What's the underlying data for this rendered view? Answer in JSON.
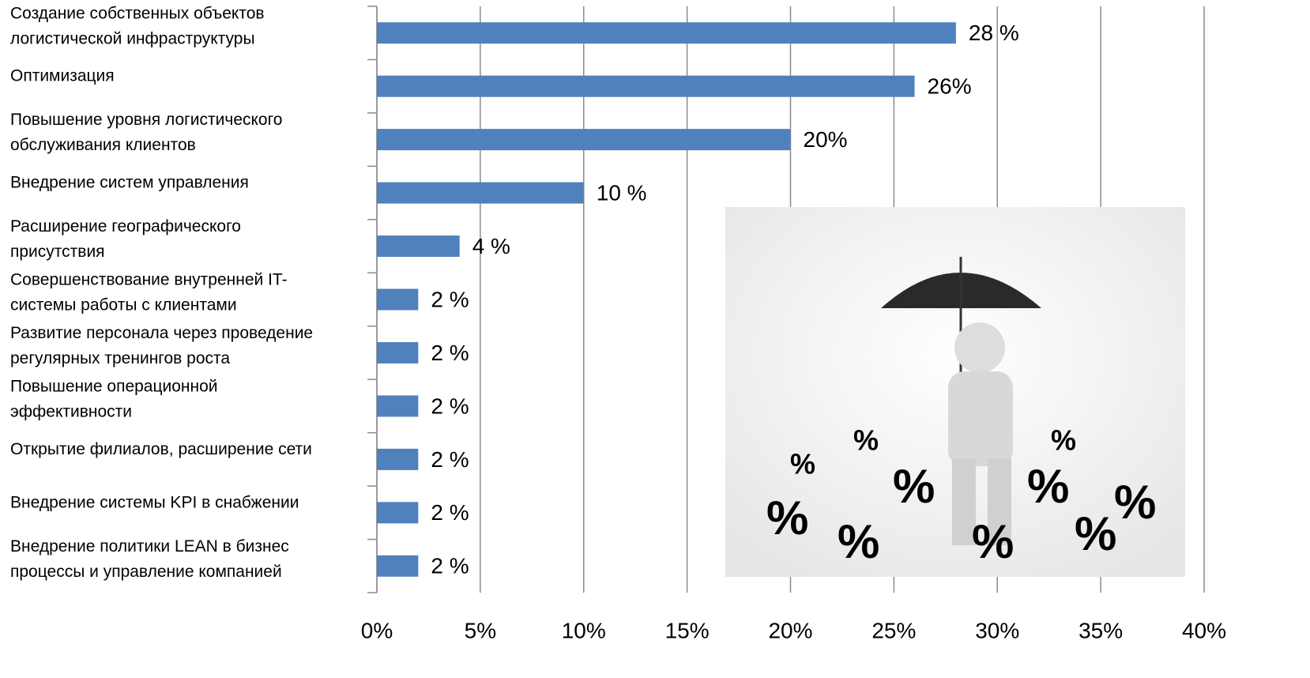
{
  "chart_data": {
    "type": "bar",
    "orientation": "horizontal",
    "categories": [
      [
        "Создание собственных объектов",
        "логистической инфраструктуры"
      ],
      [
        "Оптимизация"
      ],
      [
        "Повышение уровня логистического",
        "обслуживания клиентов"
      ],
      [
        "Внедрение систем управления"
      ],
      [
        "Расширение географического",
        "присутствия"
      ],
      [
        "Совершенствование внутренней IT-",
        "системы работы с клиентами"
      ],
      [
        "Развитие персонала через проведение",
        "регулярных тренингов роста"
      ],
      [
        "Повышение операционной",
        "эффективности"
      ],
      [
        "Открытие филиалов, расширение сети"
      ],
      [
        "Внедрение системы KPI в снабжении"
      ],
      [
        "Внедрение политики LEAN в бизнес",
        "процессы и управление компанией"
      ]
    ],
    "values": [
      28,
      26,
      20,
      10,
      4,
      2,
      2,
      2,
      2,
      2,
      2
    ],
    "value_labels": [
      "28 %",
      "26%",
      "20%",
      "10 %",
      "4 %",
      "2 %",
      "2 %",
      "2 %",
      "2 %",
      "2 %",
      "2 %"
    ],
    "color": "#4f81bd",
    "xlim": [
      0,
      40
    ],
    "xticks": [
      {
        "value": 0,
        "label": "0%"
      },
      {
        "value": 5,
        "label": "5%"
      },
      {
        "value": 10,
        "label": "10%"
      },
      {
        "value": 15,
        "label": "15%"
      },
      {
        "value": 20,
        "label": "20%"
      },
      {
        "value": 25,
        "label": "25%"
      },
      {
        "value": 30,
        "label": "30%"
      },
      {
        "value": 35,
        "label": "35%"
      },
      {
        "value": 40,
        "label": "40%"
      }
    ],
    "grid": true
  }
}
